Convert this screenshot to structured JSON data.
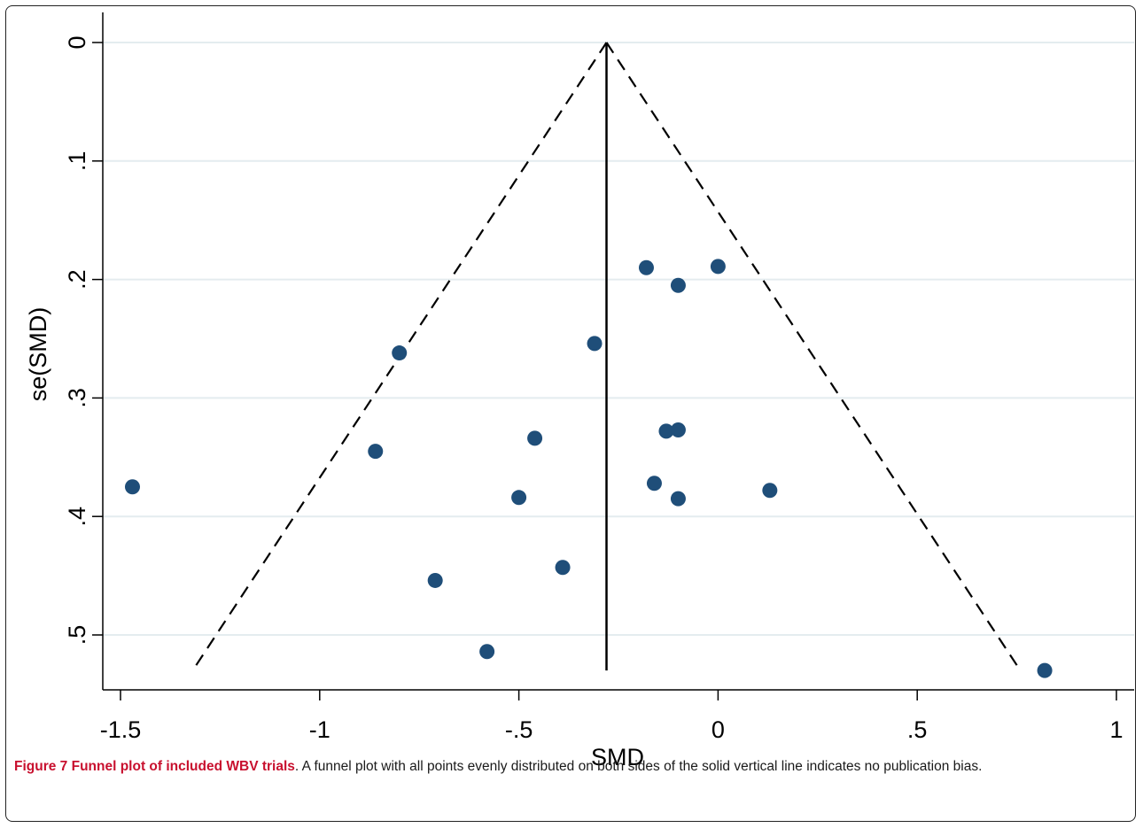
{
  "chart_data": {
    "type": "scatter",
    "xlabel": "SMD",
    "ylabel": "se(SMD)",
    "xlim": [
      -1.5,
      1
    ],
    "ylim": [
      0,
      0.53
    ],
    "y_reversed": true,
    "xticks": [
      "-1.5",
      "-1",
      "-.5",
      "0",
      ".5",
      "1"
    ],
    "xtick_values": [
      -1.5,
      -1,
      -0.5,
      0,
      0.5,
      1
    ],
    "yticks": [
      "0",
      ".1",
      ".2",
      ".3",
      ".4",
      ".5"
    ],
    "ytick_values": [
      0,
      0.1,
      0.2,
      0.3,
      0.4,
      0.5
    ],
    "grid": "horizontal",
    "pooled_smd": -0.28,
    "funnel_se_max": 0.53,
    "points": [
      {
        "x": -1.47,
        "y": 0.375
      },
      {
        "x": -0.8,
        "y": 0.262
      },
      {
        "x": -0.86,
        "y": 0.345
      },
      {
        "x": -0.46,
        "y": 0.334
      },
      {
        "x": -0.5,
        "y": 0.384
      },
      {
        "x": -0.71,
        "y": 0.454
      },
      {
        "x": -0.58,
        "y": 0.514
      },
      {
        "x": -0.39,
        "y": 0.443
      },
      {
        "x": -0.31,
        "y": 0.254
      },
      {
        "x": -0.18,
        "y": 0.19
      },
      {
        "x": 0.0,
        "y": 0.189
      },
      {
        "x": -0.1,
        "y": 0.205
      },
      {
        "x": -0.13,
        "y": 0.328
      },
      {
        "x": -0.1,
        "y": 0.327
      },
      {
        "x": -0.16,
        "y": 0.372
      },
      {
        "x": -0.1,
        "y": 0.385
      },
      {
        "x": 0.13,
        "y": 0.378
      },
      {
        "x": 0.82,
        "y": 0.53
      }
    ],
    "colors": {
      "marker": "#1f4e79",
      "grid": "#e4ecef",
      "line": "#000000"
    }
  },
  "caption": {
    "label": "Figure 7 Funnel plot of included WBV trials",
    "text": ". A funnel plot with all points evenly distributed on both sides of the solid vertical line indicates no publication bias."
  }
}
